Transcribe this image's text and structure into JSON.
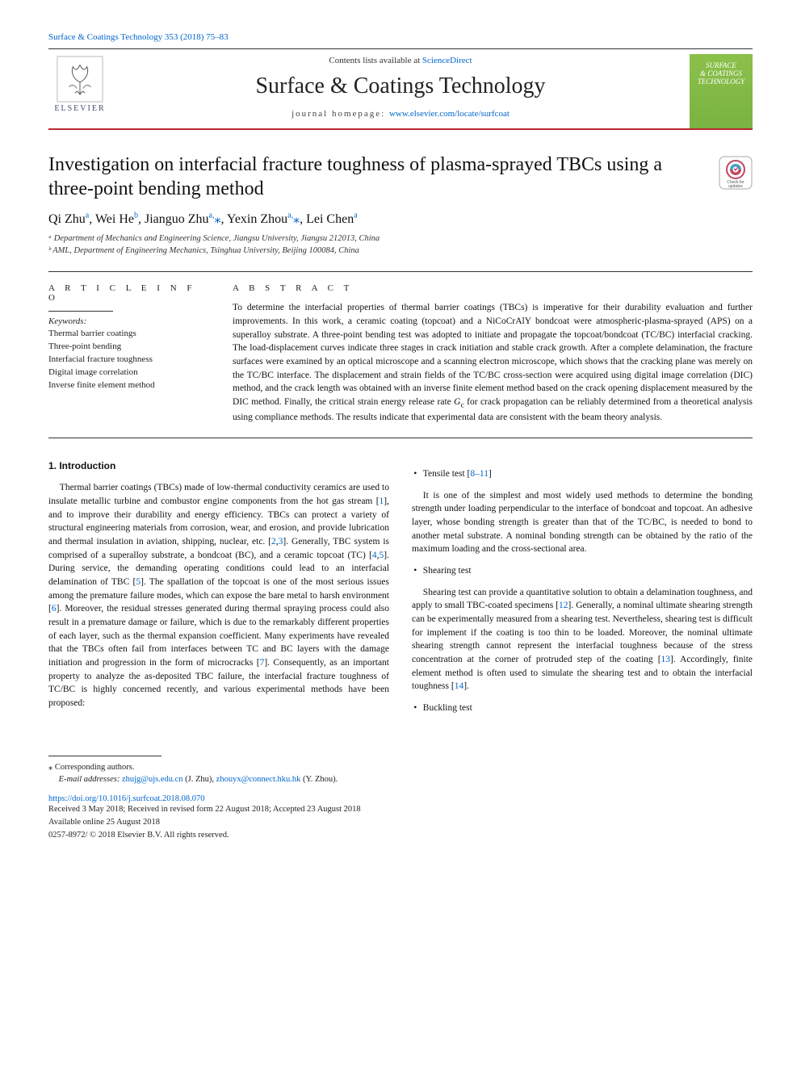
{
  "header": {
    "top_citation": "Surface & Coatings Technology 353 (2018) 75–83",
    "contents_line_prefix": "Contents lists available at ",
    "contents_link_text": "ScienceDirect",
    "journal_title": "Surface & Coatings Technology",
    "homepage_prefix": "journal homepage: ",
    "homepage_link": "www.elsevier.com/locate/surfcoat",
    "elsevier_label": "ELSEVIER",
    "cover_line1": "SURFACE",
    "cover_line2": "& COATINGS",
    "cover_line3": "TECHNOLOGY",
    "check_updates_alt": "Check for updates",
    "colors": {
      "rule_red": "#b8292f",
      "link": "#0066cc",
      "cover_bg_top": "#8bc04a",
      "cover_bg_bottom": "#7ab342",
      "elsevier_text": "#424e71"
    }
  },
  "article": {
    "title": "Investigation on interfacial fracture toughness of plasma-sprayed TBCs using a three-point bending method",
    "authors_html": "Qi Zhu<sup>a</sup>, Wei He<sup>b</sup>, Jianguo Zhu<sup>a,</sup><span class='star'>⁎</span>, Yexin Zhou<sup>a,</sup><span class='star'>⁎</span>, Lei Chen<sup>a</sup>",
    "affiliations": [
      "ᵃ Department of Mechanics and Engineering Science, Jiangsu University, Jiangsu 212013, China",
      "ᵇ AML, Department of Engineering Mechanics, Tsinghua University, Beijing 100084, China"
    ]
  },
  "info": {
    "section_label": "A R T I C L E  I N F O",
    "keywords_label": "Keywords:",
    "keywords": [
      "Thermal barrier coatings",
      "Three-point bending",
      "Interfacial fracture toughness",
      "Digital image correlation",
      "Inverse finite element method"
    ]
  },
  "abstract": {
    "section_label": "A B S T R A C T",
    "text_html": "To determine the interfacial properties of thermal barrier coatings (TBCs) is imperative for their durability evaluation and further improvements. In this work, a ceramic coating (topcoat) and a NiCoCrAlY bondcoat were atmospheric-plasma-sprayed (APS) on a superalloy substrate. A three-point bending test was adopted to initiate and propagate the topcoat/bondcoat (TC/BC) interfacial cracking. The load-displacement curves indicate three stages in crack initiation and stable crack growth. After a complete delamination, the fracture surfaces were examined by an optical microscope and a scanning electron microscope, which shows that the cracking plane was merely on the TC/BC interface. The displacement and strain fields of the TC/BC cross-section were acquired using digital image correlation (DIC) method, and the crack length was obtained with an inverse finite element method based on the crack opening displacement measured by the DIC method. Finally, the critical strain energy release rate <i>G</i><sub>c</sub> for crack propagation can be reliably determined from a theoretical analysis using compliance methods. The results indicate that experimental data are consistent with the beam theory analysis."
  },
  "body": {
    "intro_heading": "1. Introduction",
    "left_paragraphs": [
      "Thermal barrier coatings (TBCs) made of low-thermal conductivity ceramics are used to insulate metallic turbine and combustor engine components from the hot gas stream [<span class='cite'>1</span>], and to improve their durability and energy efficiency. TBCs can protect a variety of structural engineering materials from corrosion, wear, and erosion, and provide lubrication and thermal insulation in aviation, shipping, nuclear, etc. [<span class='cite'>2</span>,<span class='cite'>3</span>]. Generally, TBC system is comprised of a superalloy substrate, a bondcoat (BC), and a ceramic topcoat (TC) [<span class='cite'>4</span>,<span class='cite'>5</span>]. During service, the demanding operating conditions could lead to an interfacial delamination of TBC [<span class='cite'>5</span>]. The spallation of the topcoat is one of the most serious issues among the premature failure modes, which can expose the bare metal to harsh environment [<span class='cite'>6</span>]. Moreover, the residual stresses generated during thermal spraying process could also result in a premature damage or failure, which is due to the remarkably different properties of each layer, such as the thermal expansion coefficient. Many experiments have revealed that the TBCs often fail from interfaces between TC and BC layers with the damage initiation and progression in the form of microcracks [<span class='cite'>7</span>]. Consequently, as an important property to analyze the as-deposited TBC failure, the interfacial fracture toughness of TC/BC is highly concerned recently, and various experimental methods have been proposed:"
    ],
    "right_bullets": [
      {
        "label": "Tensile test [",
        "cite": "8–11",
        "suffix": "]"
      }
    ],
    "right_paragraphs_1": [
      "It is one of the simplest and most widely used methods to determine the bonding strength under loading perpendicular to the interface of bondcoat and topcoat. An adhesive layer, whose bonding strength is greater than that of the TC/BC, is needed to bond to another metal substrate. A nominal bonding strength can be obtained by the ratio of the maximum loading and the cross-sectional area."
    ],
    "right_bullet_shear": "Shearing test",
    "right_paragraphs_2": [
      "Shearing test can provide a quantitative solution to obtain a delamination toughness, and apply to small TBC-coated specimens [<span class='cite'>12</span>]. Generally, a nominal ultimate shearing strength can be experimentally measured from a shearing test. Nevertheless, shearing test is difficult for implement if the coating is too thin to be loaded. Moreover, the nominal ultimate shearing strength cannot represent the interfacial toughness because of the stress concentration at the corner of protruded step of the coating [<span class='cite'>13</span>]. Accordingly, finite element method is often used to simulate the shearing test and to obtain the interfacial toughness [<span class='cite'>14</span>]."
    ],
    "right_bullet_buckling": "Buckling test"
  },
  "footer": {
    "corr_label": "⁎ Corresponding authors.",
    "email_label": "E-mail addresses: ",
    "emails_html": "<a>zhujg@ujs.edu.cn</a> (J. Zhu), <a>zhouyx@connect.hku.hk</a> (Y. Zhou).",
    "doi": "https://doi.org/10.1016/j.surfcoat.2018.08.070",
    "received": "Received 3 May 2018; Received in revised form 22 August 2018; Accepted 23 August 2018",
    "available": "Available online 25 August 2018",
    "copyright": "0257-8972/ © 2018 Elsevier B.V. All rights reserved."
  }
}
